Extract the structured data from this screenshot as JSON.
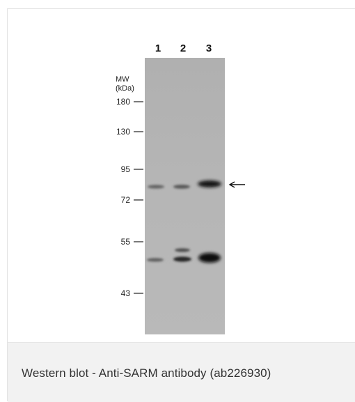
{
  "figure": {
    "mw_label_line1": "MW",
    "mw_label_line2": "(kDa)",
    "lanes": [
      "1",
      "2",
      "3"
    ],
    "markers": [
      "180",
      "130",
      "95",
      "72",
      "55",
      "43"
    ]
  },
  "caption": {
    "text": "Western blot - Anti-SARM antibody (ab226930)"
  },
  "colors": {
    "membrane": "#b4b4b4",
    "band": "#2a2a2a",
    "caption_bg": "#f2f2f2",
    "caption_text": "#333333"
  }
}
